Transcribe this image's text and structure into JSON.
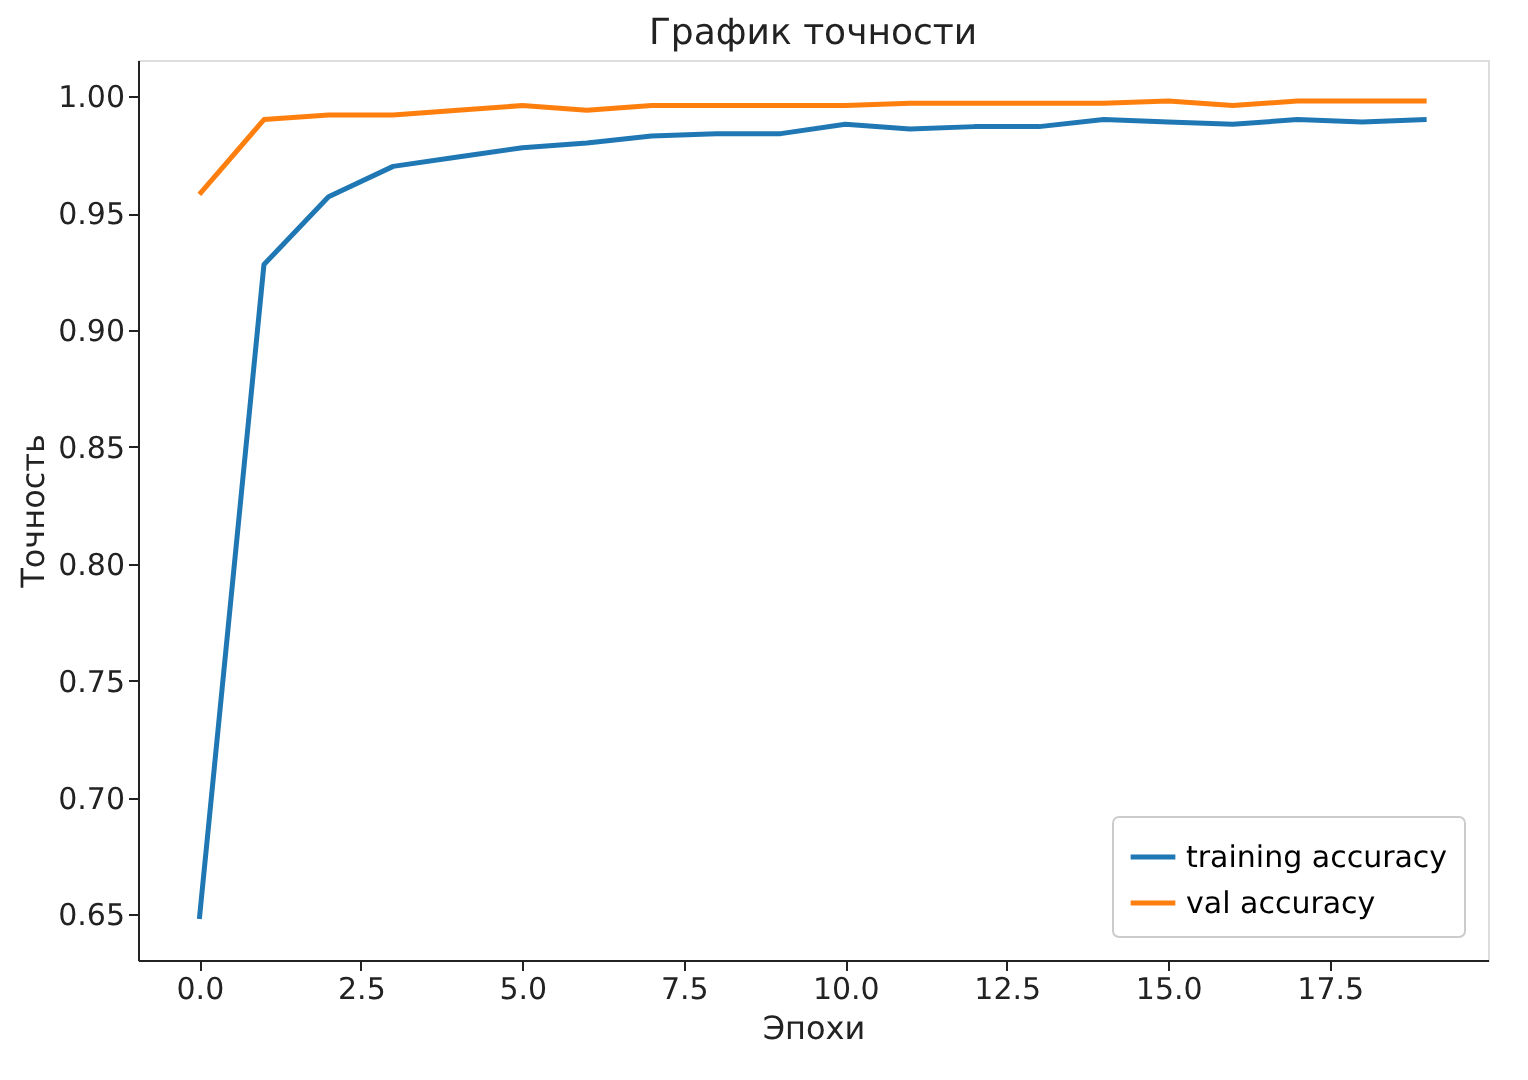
{
  "chart_data": {
    "type": "line",
    "title": "График точности",
    "xlabel": "Эпохи",
    "ylabel": "Точность",
    "x": [
      0,
      1,
      2,
      3,
      4,
      5,
      6,
      7,
      8,
      9,
      10,
      11,
      12,
      13,
      14,
      15,
      16,
      17,
      18,
      19
    ],
    "series": [
      {
        "name": "training accuracy",
        "color": "#1f77b4",
        "values": [
          0.648,
          0.928,
          0.957,
          0.97,
          0.974,
          0.978,
          0.98,
          0.983,
          0.984,
          0.984,
          0.988,
          0.986,
          0.987,
          0.987,
          0.99,
          0.989,
          0.988,
          0.99,
          0.989,
          0.99
        ]
      },
      {
        "name": "val accuracy",
        "color": "#ff7f0e",
        "values": [
          0.958,
          0.99,
          0.992,
          0.992,
          0.994,
          0.996,
          0.994,
          0.996,
          0.996,
          0.996,
          0.996,
          0.997,
          0.997,
          0.997,
          0.997,
          0.998,
          0.996,
          0.998,
          0.998,
          0.998
        ]
      }
    ],
    "xlim": [
      -0.95,
      19.95
    ],
    "xticks": [
      {
        "value": 0,
        "label": "0.0"
      },
      2.5,
      {
        "value": 5,
        "label": "5.0"
      },
      7.5,
      {
        "value": 10,
        "label": "10.0"
      },
      12.5,
      {
        "value": 15,
        "label": "15.0"
      },
      17.5
    ],
    "ylim": [
      0.6305,
      1.0155
    ],
    "yticks": [
      0.65,
      {
        "value": 0.7,
        "label": "0.70"
      },
      0.75,
      {
        "value": 0.8,
        "label": "0.80"
      },
      0.85,
      {
        "value": 0.9,
        "label": "0.90"
      },
      0.95,
      {
        "value": 1,
        "label": "1.00"
      }
    ],
    "grid": false,
    "legend": "bottom right",
    "marker": "none",
    "line_style": "solid"
  }
}
